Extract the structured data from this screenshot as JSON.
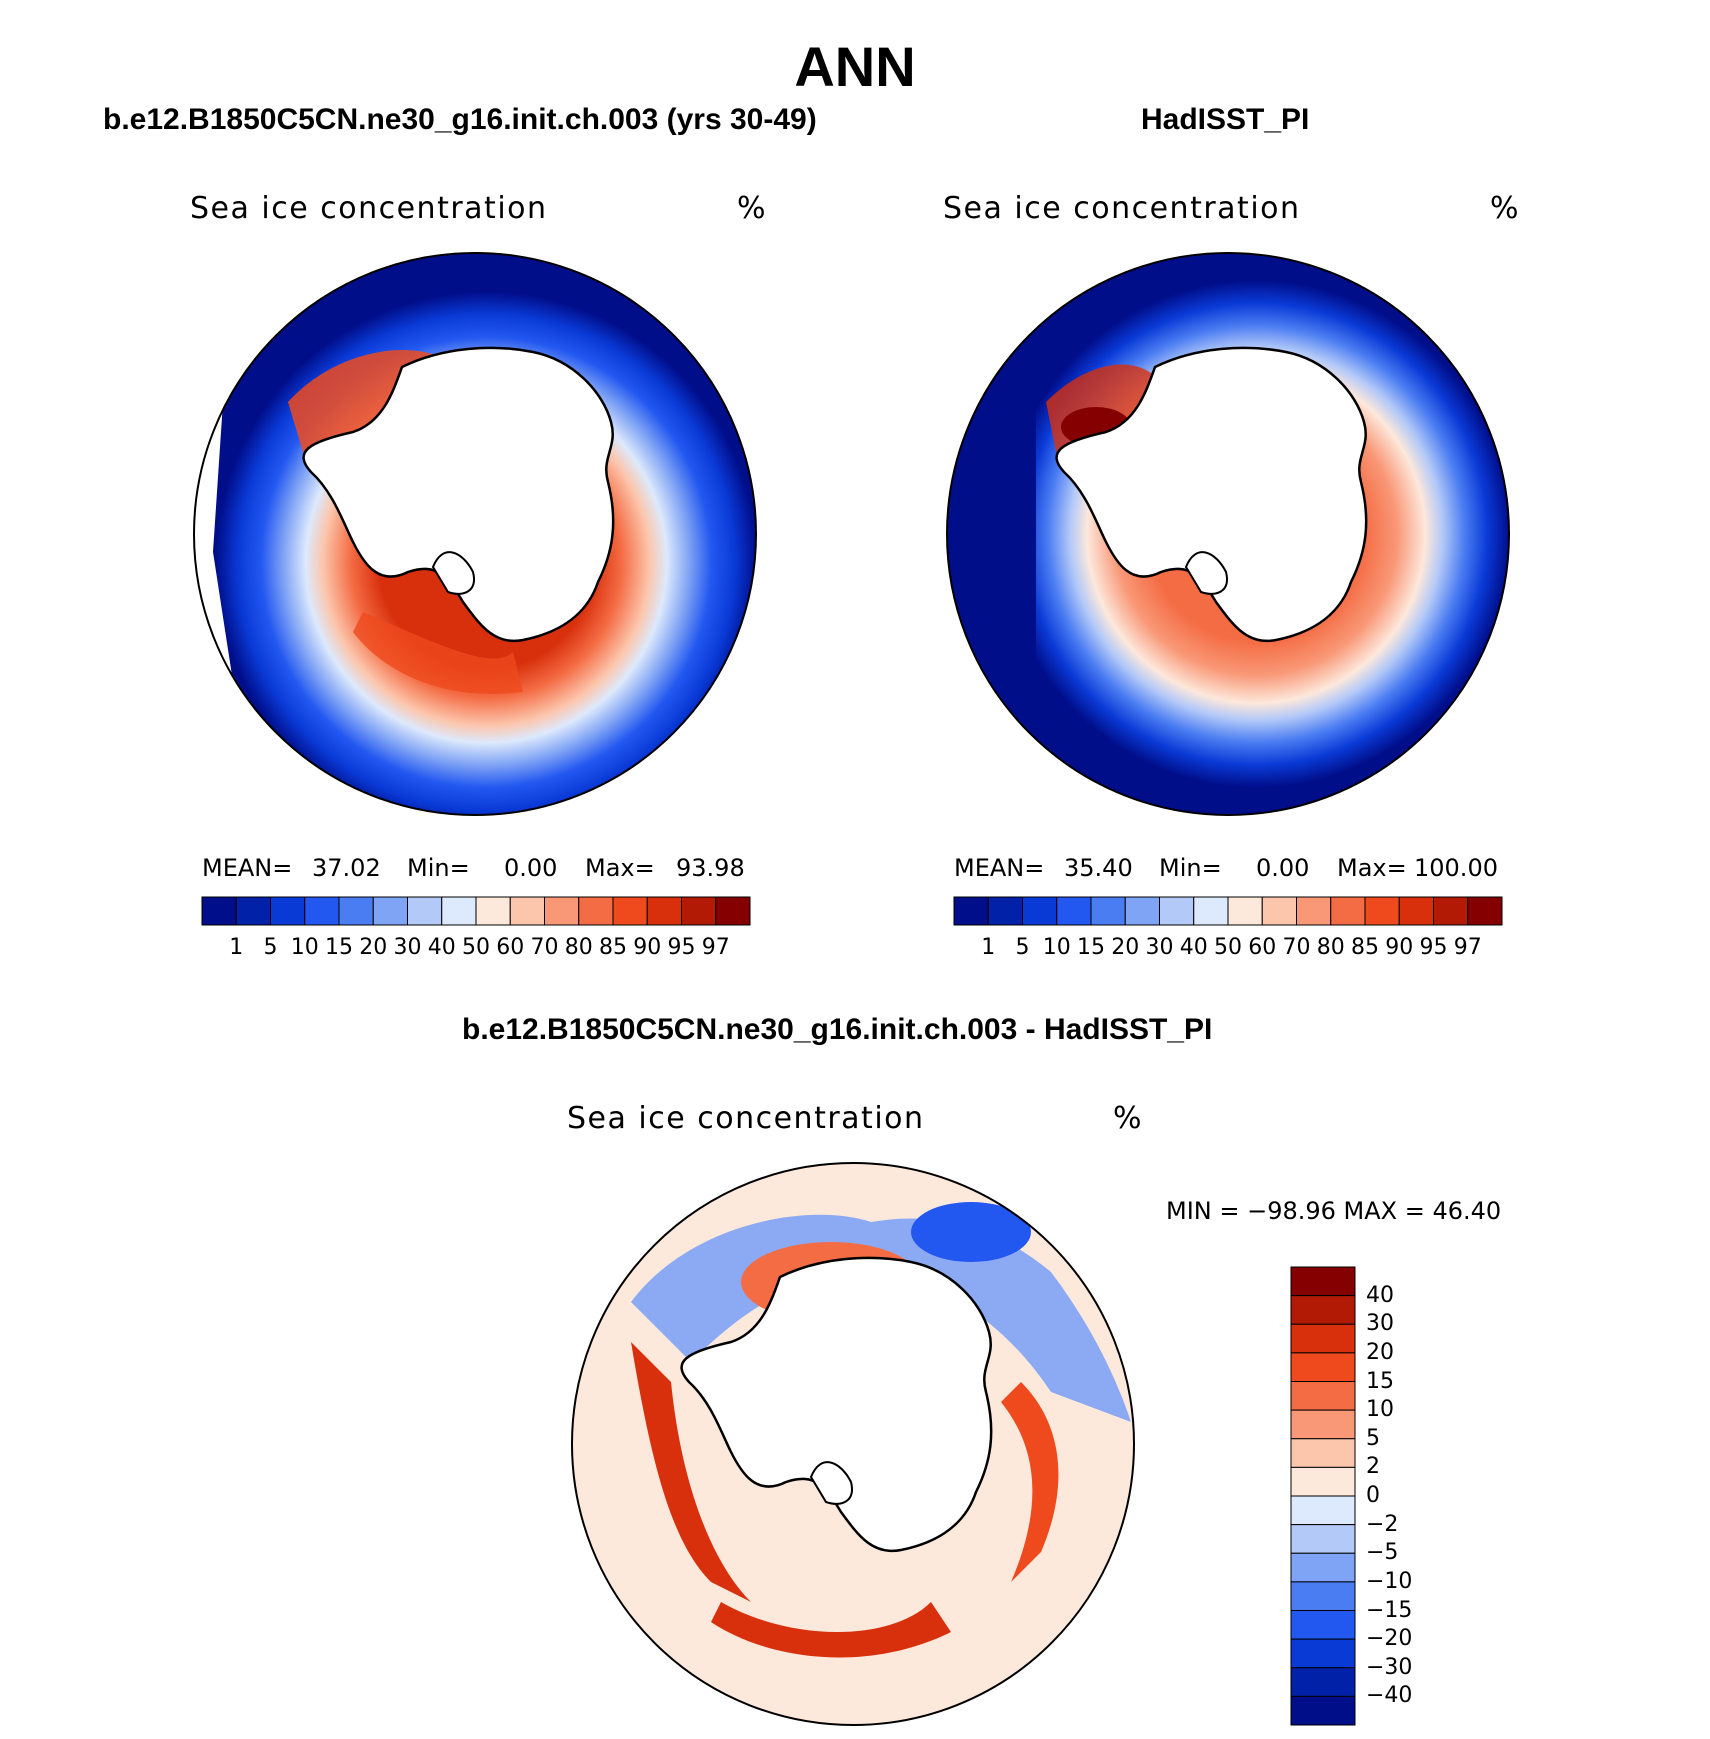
{
  "figure": {
    "title": "ANN"
  },
  "colors": {
    "ice_scale": [
      "#000e8a",
      "#0021a8",
      "#0a3ad6",
      "#2257f0",
      "#4a7cf2",
      "#7fa3f5",
      "#b3c9f8",
      "#dde9fc",
      "#fde8dc",
      "#fcc6ad",
      "#f99877",
      "#f46c44",
      "#ee4a1d",
      "#d8300d",
      "#b31a05",
      "#850000"
    ],
    "diff_scale": [
      "#850000",
      "#b31a05",
      "#d8300d",
      "#ee4a1d",
      "#f46c44",
      "#f99877",
      "#fcc6ad",
      "#fde8dc",
      "#dde9fc",
      "#b3c9f8",
      "#7fa3f5",
      "#4a7cf2",
      "#2257f0",
      "#0a3ad6",
      "#0021a8",
      "#000e8a"
    ]
  },
  "panels": {
    "model": {
      "title": "b.e12.B1850C5CN.ne30_g16.init.ch.003 (yrs 30-49)",
      "variable": "Sea ice concentration",
      "units": "%",
      "mean_label": "MEAN=",
      "mean": "37.02",
      "min_label": "Min=",
      "min": "0.00",
      "max_label": "Max=",
      "max": "93.98"
    },
    "obs": {
      "title": "HadISST_PI",
      "variable": "Sea ice concentration",
      "units": "%",
      "mean_label": "MEAN=",
      "mean": "35.40",
      "min_label": "Min=",
      "min": "0.00",
      "max_label": "Max=",
      "max": "100.00"
    },
    "diff": {
      "title": "b.e12.B1850C5CN.ne30_g16.init.ch.003 - HadISST_PI",
      "variable": "Sea ice concentration",
      "units": "%",
      "minmax": "MIN = −98.96 MAX =   46.40"
    }
  },
  "ice_colorbar": {
    "labels": [
      "1",
      "5",
      "10",
      "15",
      "20",
      "30",
      "40",
      "50",
      "60",
      "70",
      "80",
      "85",
      "90",
      "95",
      "97"
    ]
  },
  "diff_colorbar": {
    "labels": [
      "40",
      "30",
      "20",
      "15",
      "10",
      "5",
      "2",
      "0",
      "−2",
      "−5",
      "−10",
      "−15",
      "−20",
      "−30",
      "−40"
    ]
  }
}
